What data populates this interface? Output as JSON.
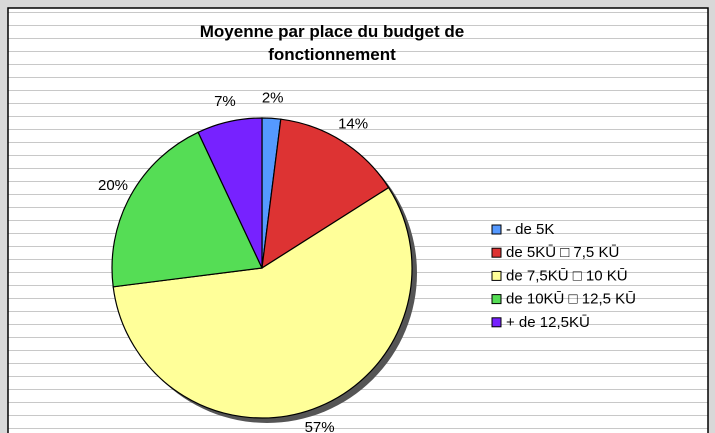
{
  "chart_data": {
    "type": "pie",
    "title": "Moyenne par place du budget de fonctionnement",
    "categories": [
      "- de 5K",
      "de 5KŪ □ 7,5 KŪ",
      "de 7,5KŪ □ 10 KŪ",
      "de 10KŪ □ 12,5 KŪ",
      "+ de 12,5KŪ"
    ],
    "values": [
      2,
      14,
      57,
      20,
      7
    ],
    "value_labels": [
      "2%",
      "14%",
      "57%",
      "20%",
      "7%"
    ],
    "colors": [
      "#5599ff",
      "#dd3333",
      "#ffff99",
      "#55dd55",
      "#7722ff"
    ],
    "legend": "right"
  }
}
